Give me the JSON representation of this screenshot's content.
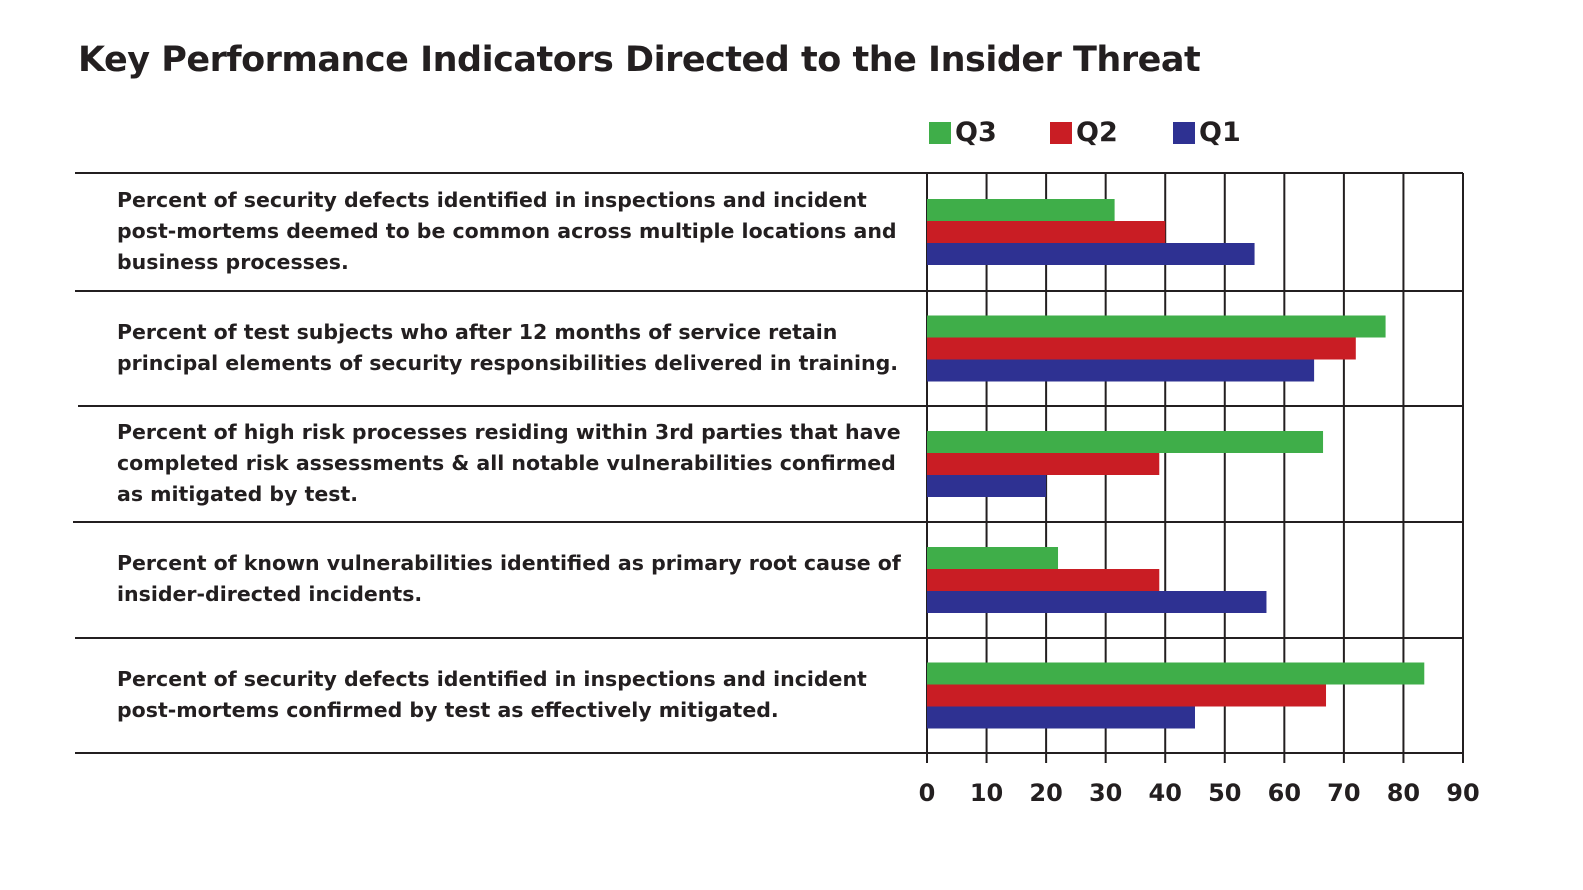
{
  "chart_data": {
    "type": "bar",
    "orientation": "horizontal",
    "title": "Key Performance Indicators Directed to the Insider Threat",
    "categories": [
      "Percent of security defects identified in inspections and incident post-mortems deemed to be common across multiple locations and business processes.",
      "Percent of test subjects who after 12 months of service retain principal elements of security responsibilities delivered in training.",
      "Percent of high risk processes residing within 3rd parties that have completed risk assessments & all notable vulnerabilities confirmed as mitigated by test.",
      "Percent of known vulnerabilities identified as primary root cause of insider-directed incidents.",
      "Percent of security defects identified in inspections and incident post-mortems confirmed by test as effectively mitigated."
    ],
    "series": [
      {
        "name": "Q3",
        "color": "#3fae49",
        "values": [
          31.5,
          77,
          66.5,
          22,
          83.5
        ]
      },
      {
        "name": "Q2",
        "color": "#c91d24",
        "values": [
          40,
          72,
          39,
          39,
          67
        ]
      },
      {
        "name": "Q1",
        "color": "#2e3192",
        "values": [
          55,
          65,
          20,
          57,
          45
        ]
      }
    ],
    "xlim": [
      0,
      90
    ],
    "xticks": [
      "0",
      "10",
      "20",
      "30",
      "40",
      "50",
      "60",
      "70",
      "80",
      "90"
    ],
    "grid": true,
    "legend": "top-right"
  }
}
